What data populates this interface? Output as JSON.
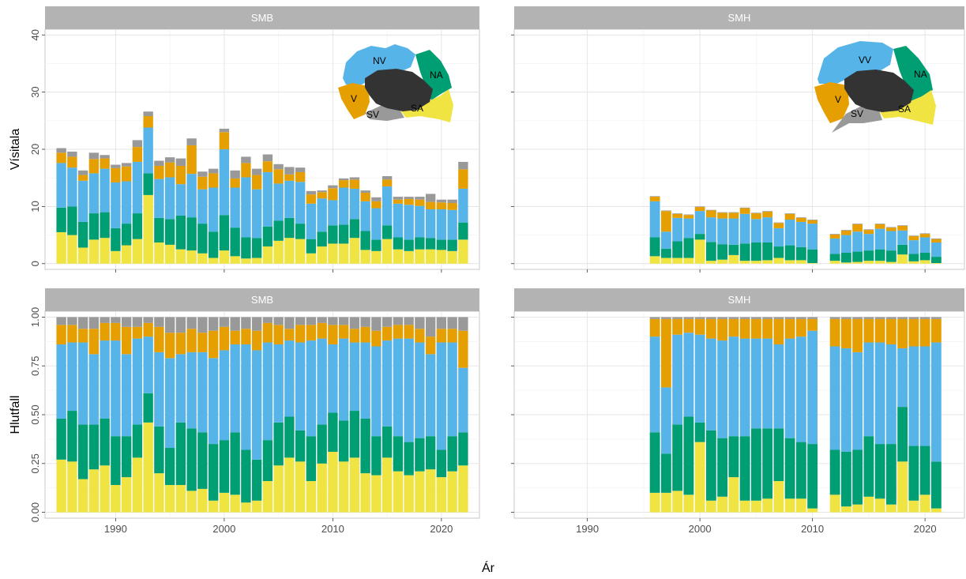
{
  "chart_data": {
    "type": "bar",
    "layout": "facet grid 2x2, stacked bars, shared x axis",
    "xlabel": "Ár",
    "xticks": [
      1990,
      2000,
      2010,
      2020
    ],
    "x_range": [
      1983.5,
      2023.5
    ],
    "stack_colors": [
      "#F0E442",
      "#009E73",
      "#56B4E9",
      "#E69F00",
      "#999999"
    ],
    "rows": [
      {
        "ylabel": "Vísitala",
        "ylim": [
          -1,
          41
        ],
        "yticks": [
          0,
          10,
          20,
          30,
          40
        ],
        "ytick_labels": [
          "0",
          "10",
          "20",
          "30",
          "40"
        ]
      },
      {
        "ylabel": "Hlutfall",
        "ylim": [
          -0.03,
          1.03
        ],
        "yticks": [
          0,
          0.25,
          0.5,
          0.75,
          1
        ],
        "ytick_labels": [
          "0.00",
          "0.25",
          "0.50",
          "0.75",
          "1.00"
        ]
      }
    ],
    "panels": [
      {
        "title": "SMB",
        "row": 0,
        "col": 0,
        "maps": {
          "labels": [
            "NV",
            "NA",
            "V",
            "SV",
            "SA"
          ]
        },
        "years": [
          1985,
          1986,
          1987,
          1988,
          1989,
          1990,
          1991,
          1992,
          1993,
          1994,
          1995,
          1996,
          1997,
          1998,
          1999,
          2000,
          2001,
          2002,
          2003,
          2004,
          2005,
          2006,
          2007,
          2008,
          2009,
          2010,
          2011,
          2012,
          2013,
          2014,
          2015,
          2016,
          2017,
          2018,
          2019,
          2020,
          2021,
          2022
        ],
        "series": [
          {
            "values": [
              5.5,
              5.0,
              2.8,
              4.2,
              4.5,
              2.2,
              3.2,
              4.3,
              12.0,
              3.7,
              3.3,
              2.5,
              2.3,
              1.8,
              1.0,
              2.3,
              1.3,
              0.9,
              1.0,
              3.0,
              4.0,
              4.5,
              4.3,
              1.8,
              3.0,
              3.5,
              3.5,
              4.5,
              2.4,
              2.2,
              4.3,
              2.5,
              2.2,
              2.5,
              2.5,
              2.4,
              2.2,
              4.2
            ]
          },
          {
            "values": [
              4.3,
              5.0,
              4.5,
              4.6,
              4.5,
              4.0,
              3.8,
              4.5,
              3.8,
              4.3,
              4.5,
              5.9,
              5.8,
              5.2,
              4.6,
              6.2,
              5.0,
              3.7,
              3.5,
              3.5,
              3.5,
              3.5,
              2.7,
              2.5,
              2.6,
              3.2,
              3.3,
              3.3,
              3.3,
              2.0,
              2.4,
              2.1,
              2.0,
              2.1,
              2.0,
              1.8,
              2.0,
              3.0
            ]
          },
          {
            "values": [
              7.8,
              6.8,
              7.2,
              7.0,
              7.6,
              8.0,
              7.4,
              9.0,
              8.0,
              6.8,
              7.3,
              5.5,
              7.6,
              6.0,
              7.7,
              11.5,
              7.0,
              10.5,
              8.5,
              9.5,
              6.5,
              6.5,
              7.3,
              6.2,
              5.8,
              4.4,
              6.5,
              5.3,
              5.2,
              5.5,
              6.8,
              5.9,
              6.1,
              5.5,
              5.0,
              5.3,
              5.2,
              5.9
            ]
          },
          {
            "values": [
              1.8,
              1.9,
              1.0,
              2.5,
              1.8,
              2.5,
              2.6,
              2.6,
              2.0,
              2.3,
              2.6,
              3.2,
              5.0,
              2.2,
              2.5,
              3.0,
              1.6,
              2.5,
              2.5,
              1.9,
              2.5,
              1.1,
              1.7,
              1.6,
              1.1,
              2.1,
              1.3,
              1.6,
              1.5,
              1.2,
              1.2,
              0.7,
              1.0,
              1.1,
              1.3,
              1.2,
              1.2,
              3.4
            ]
          },
          {
            "values": [
              0.8,
              0.9,
              0.8,
              1.1,
              0.6,
              0.6,
              0.6,
              1.2,
              0.8,
              0.9,
              0.9,
              1.3,
              1.2,
              0.9,
              0.8,
              0.6,
              1.4,
              1.1,
              1.1,
              1.2,
              0.9,
              1.3,
              0.8,
              0.6,
              0.3,
              0.5,
              0.3,
              0.4,
              0.4,
              0.7,
              0.6,
              0.5,
              0.4,
              0.5,
              1.4,
              0.5,
              0.6,
              1.3
            ]
          }
        ]
      },
      {
        "title": "SMH",
        "row": 0,
        "col": 1,
        "maps": {
          "labels": [
            "VV",
            "NA",
            "V",
            "SV",
            "SA"
          ]
        },
        "years": [
          1996,
          1997,
          1998,
          1999,
          2000,
          2001,
          2002,
          2003,
          2004,
          2005,
          2006,
          2007,
          2008,
          2009,
          2010,
          2012,
          2013,
          2014,
          2015,
          2016,
          2017,
          2018,
          2019,
          2020,
          2021
        ],
        "series": [
          {
            "values": [
              1.3,
              1.0,
              1.0,
              1.0,
              4.2,
              0.5,
              0.7,
              1.5,
              0.5,
              0.5,
              0.6,
              1.0,
              0.6,
              0.6,
              0.1,
              0.5,
              0.2,
              0.3,
              0.5,
              0.5,
              0.3,
              1.6,
              0.4,
              0.6,
              0.1
            ]
          },
          {
            "values": [
              3.3,
              1.6,
              2.9,
              3.5,
              1.0,
              3.3,
              2.7,
              1.8,
              3.0,
              3.2,
              3.1,
              2.0,
              2.6,
              2.3,
              2.4,
              1.2,
              1.7,
              1.8,
              1.8,
              2.0,
              2.0,
              1.7,
              1.3,
              1.3,
              1.1
            ]
          },
          {
            "values": [
              6.3,
              3.0,
              4.1,
              3.4,
              4.0,
              4.3,
              4.5,
              4.6,
              5.2,
              4.1,
              4.4,
              3.2,
              4.5,
              4.4,
              4.5,
              2.7,
              3.1,
              3.5,
              2.9,
              3.6,
              3.4,
              2.5,
              2.4,
              2.7,
              2.5
            ]
          },
          {
            "values": [
              0.8,
              3.6,
              0.7,
              0.6,
              0.7,
              1.2,
              1.0,
              1.0,
              1.0,
              1.0,
              1.0,
              0.9,
              1.0,
              0.7,
              0.6,
              0.7,
              0.8,
              1.3,
              0.7,
              0.8,
              0.6,
              0.8,
              0.7,
              0.6,
              0.6
            ]
          },
          {
            "values": [
              0.1,
              0.1,
              0.1,
              0.1,
              0.1,
              0.1,
              0.1,
              0.1,
              0.1,
              0.1,
              0.1,
              0.1,
              0.1,
              0.1,
              0.1,
              0.1,
              0.1,
              0.1,
              0.1,
              0.1,
              0.1,
              0.1,
              0.1,
              0.1,
              0.1
            ]
          }
        ]
      },
      {
        "title": "SMB",
        "row": 1,
        "col": 0,
        "years": [
          1985,
          1986,
          1987,
          1988,
          1989,
          1990,
          1991,
          1992,
          1993,
          1994,
          1995,
          1996,
          1997,
          1998,
          1999,
          2000,
          2001,
          2002,
          2003,
          2004,
          2005,
          2006,
          2007,
          2008,
          2009,
          2010,
          2011,
          2012,
          2013,
          2014,
          2015,
          2016,
          2017,
          2018,
          2019,
          2020,
          2021,
          2022
        ],
        "series": [
          {
            "values": [
              0.27,
              0.26,
              0.17,
              0.22,
              0.24,
              0.14,
              0.18,
              0.28,
              0.46,
              0.2,
              0.14,
              0.14,
              0.11,
              0.12,
              0.06,
              0.1,
              0.09,
              0.05,
              0.06,
              0.16,
              0.24,
              0.28,
              0.26,
              0.16,
              0.25,
              0.31,
              0.26,
              0.28,
              0.2,
              0.19,
              0.28,
              0.21,
              0.19,
              0.21,
              0.22,
              0.18,
              0.21,
              0.24
            ]
          },
          {
            "values": [
              0.21,
              0.26,
              0.28,
              0.23,
              0.24,
              0.25,
              0.21,
              0.17,
              0.15,
              0.24,
              0.19,
              0.32,
              0.32,
              0.29,
              0.29,
              0.27,
              0.32,
              0.27,
              0.21,
              0.21,
              0.22,
              0.21,
              0.16,
              0.23,
              0.2,
              0.2,
              0.21,
              0.24,
              0.28,
              0.2,
              0.16,
              0.18,
              0.17,
              0.17,
              0.17,
              0.14,
              0.18,
              0.17
            ]
          },
          {
            "values": [
              0.38,
              0.35,
              0.42,
              0.36,
              0.4,
              0.49,
              0.42,
              0.44,
              0.29,
              0.38,
              0.46,
              0.35,
              0.39,
              0.41,
              0.44,
              0.46,
              0.45,
              0.54,
              0.56,
              0.5,
              0.4,
              0.39,
              0.45,
              0.49,
              0.44,
              0.35,
              0.42,
              0.35,
              0.39,
              0.46,
              0.44,
              0.5,
              0.53,
              0.49,
              0.42,
              0.55,
              0.48,
              0.33
            ]
          },
          {
            "values": [
              0.1,
              0.09,
              0.07,
              0.13,
              0.09,
              0.09,
              0.14,
              0.06,
              0.07,
              0.13,
              0.13,
              0.11,
              0.12,
              0.1,
              0.14,
              0.12,
              0.07,
              0.08,
              0.1,
              0.1,
              0.1,
              0.06,
              0.09,
              0.08,
              0.08,
              0.1,
              0.07,
              0.07,
              0.08,
              0.08,
              0.07,
              0.07,
              0.07,
              0.07,
              0.09,
              0.07,
              0.07,
              0.19
            ]
          },
          {
            "values": [
              0.04,
              0.04,
              0.06,
              0.06,
              0.03,
              0.03,
              0.05,
              0.05,
              0.03,
              0.05,
              0.08,
              0.08,
              0.06,
              0.08,
              0.07,
              0.05,
              0.07,
              0.06,
              0.07,
              0.03,
              0.04,
              0.06,
              0.04,
              0.04,
              0.03,
              0.04,
              0.04,
              0.06,
              0.05,
              0.07,
              0.05,
              0.04,
              0.04,
              0.06,
              0.1,
              0.06,
              0.06,
              0.07
            ]
          }
        ]
      },
      {
        "title": "SMH",
        "row": 1,
        "col": 1,
        "years": [
          1996,
          1997,
          1998,
          1999,
          2000,
          2001,
          2002,
          2003,
          2004,
          2005,
          2006,
          2007,
          2008,
          2009,
          2010,
          2012,
          2013,
          2014,
          2015,
          2016,
          2017,
          2018,
          2019,
          2020,
          2021
        ],
        "series": [
          {
            "values": [
              0.1,
              0.1,
              0.11,
              0.09,
              0.36,
              0.06,
              0.08,
              0.18,
              0.06,
              0.06,
              0.07,
              0.16,
              0.07,
              0.07,
              0.02,
              0.09,
              0.03,
              0.04,
              0.08,
              0.07,
              0.04,
              0.26,
              0.06,
              0.09,
              0.02
            ]
          },
          {
            "values": [
              0.31,
              0.2,
              0.34,
              0.4,
              0.1,
              0.36,
              0.3,
              0.21,
              0.33,
              0.37,
              0.36,
              0.27,
              0.31,
              0.29,
              0.33,
              0.23,
              0.28,
              0.28,
              0.31,
              0.28,
              0.31,
              0.28,
              0.28,
              0.25,
              0.24
            ]
          },
          {
            "values": [
              0.49,
              0.34,
              0.46,
              0.43,
              0.45,
              0.47,
              0.5,
              0.51,
              0.5,
              0.46,
              0.46,
              0.43,
              0.51,
              0.54,
              0.58,
              0.53,
              0.53,
              0.5,
              0.48,
              0.52,
              0.51,
              0.3,
              0.51,
              0.51,
              0.61
            ]
          },
          {
            "values": [
              0.09,
              0.35,
              0.08,
              0.07,
              0.08,
              0.1,
              0.11,
              0.09,
              0.1,
              0.1,
              0.1,
              0.13,
              0.1,
              0.09,
              0.06,
              0.14,
              0.15,
              0.17,
              0.12,
              0.12,
              0.13,
              0.15,
              0.14,
              0.14,
              0.12
            ]
          },
          {
            "values": [
              0.01,
              0.01,
              0.01,
              0.01,
              0.01,
              0.01,
              0.01,
              0.01,
              0.01,
              0.01,
              0.01,
              0.01,
              0.01,
              0.01,
              0.01,
              0.01,
              0.01,
              0.01,
              0.01,
              0.01,
              0.01,
              0.01,
              0.01,
              0.01,
              0.01
            ]
          }
        ]
      }
    ]
  }
}
